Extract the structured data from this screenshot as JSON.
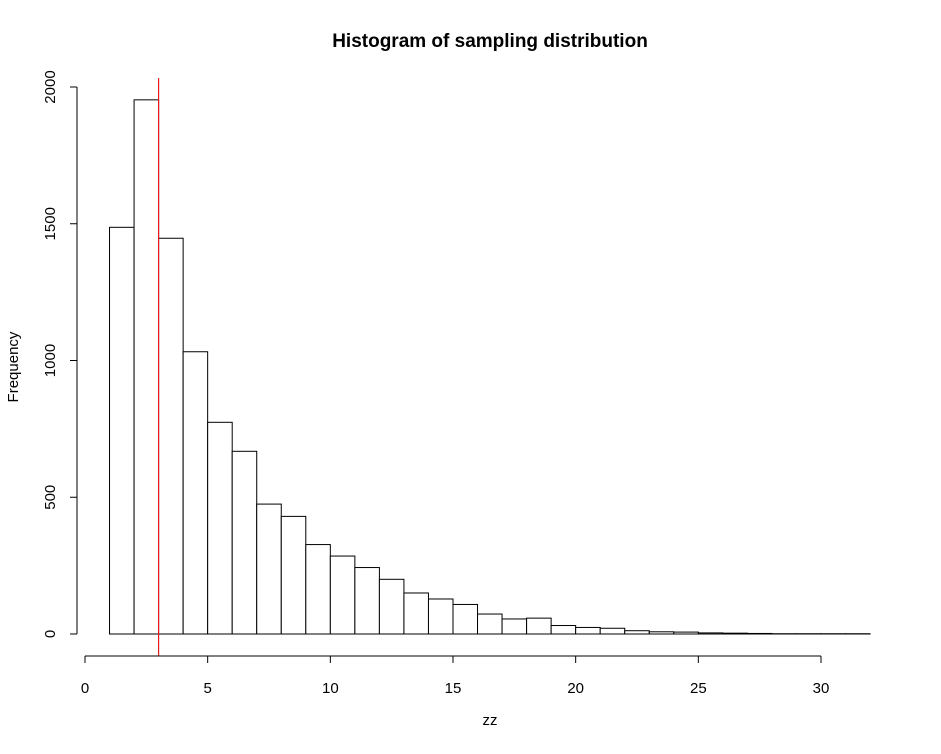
{
  "chart_data": {
    "type": "bar",
    "title": "Histogram of sampling distribution",
    "xlabel": "zz",
    "ylabel": "Frequency",
    "xlim": [
      0,
      32
    ],
    "ylim": [
      0,
      2000
    ],
    "x_ticks": [
      "0",
      "5",
      "10",
      "15",
      "20",
      "25",
      "30"
    ],
    "y_ticks": [
      "0",
      "500",
      "1000",
      "1500",
      "2000"
    ],
    "bins": [
      {
        "from": 1,
        "to": 2,
        "count": 1487
      },
      {
        "from": 2,
        "to": 3,
        "count": 1953
      },
      {
        "from": 3,
        "to": 4,
        "count": 1447
      },
      {
        "from": 4,
        "to": 5,
        "count": 1032
      },
      {
        "from": 5,
        "to": 6,
        "count": 774
      },
      {
        "from": 6,
        "to": 7,
        "count": 668
      },
      {
        "from": 7,
        "to": 8,
        "count": 475
      },
      {
        "from": 8,
        "to": 9,
        "count": 430
      },
      {
        "from": 9,
        "to": 10,
        "count": 327
      },
      {
        "from": 10,
        "to": 11,
        "count": 285
      },
      {
        "from": 11,
        "to": 12,
        "count": 243
      },
      {
        "from": 12,
        "to": 13,
        "count": 200
      },
      {
        "from": 13,
        "to": 14,
        "count": 150
      },
      {
        "from": 14,
        "to": 15,
        "count": 128
      },
      {
        "from": 15,
        "to": 16,
        "count": 108
      },
      {
        "from": 16,
        "to": 17,
        "count": 73
      },
      {
        "from": 17,
        "to": 18,
        "count": 55
      },
      {
        "from": 18,
        "to": 19,
        "count": 58
      },
      {
        "from": 19,
        "to": 20,
        "count": 31
      },
      {
        "from": 20,
        "to": 21,
        "count": 24
      },
      {
        "from": 21,
        "to": 22,
        "count": 21
      },
      {
        "from": 22,
        "to": 23,
        "count": 12
      },
      {
        "from": 23,
        "to": 24,
        "count": 8
      },
      {
        "from": 24,
        "to": 25,
        "count": 7
      },
      {
        "from": 25,
        "to": 26,
        "count": 4
      },
      {
        "from": 26,
        "to": 27,
        "count": 3
      },
      {
        "from": 27,
        "to": 28,
        "count": 2
      },
      {
        "from": 28,
        "to": 29,
        "count": 1
      },
      {
        "from": 29,
        "to": 30,
        "count": 1
      },
      {
        "from": 30,
        "to": 31,
        "count": 1
      },
      {
        "from": 31,
        "to": 32,
        "count": 1
      }
    ],
    "reference_line": {
      "x": 3,
      "color": "#e41a1c"
    },
    "grid": false
  }
}
